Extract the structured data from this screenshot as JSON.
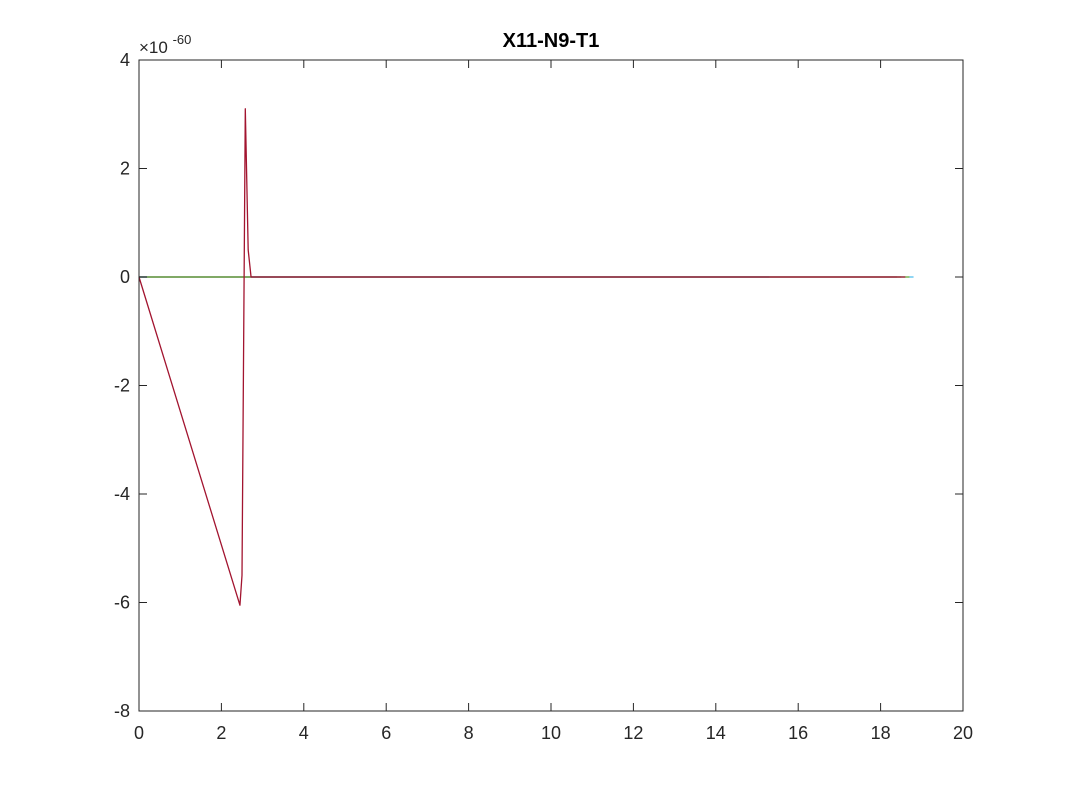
{
  "chart_data": {
    "type": "line",
    "title": "X11-N9-T1",
    "xlabel": "",
    "ylabel": "",
    "xlim": [
      0,
      20
    ],
    "ylim": [
      -8,
      4
    ],
    "y_scale_factor": {
      "base": "×10",
      "exponent": "-60"
    },
    "x_ticks": [
      0,
      2,
      4,
      6,
      8,
      10,
      12,
      14,
      16,
      18,
      20
    ],
    "y_ticks": [
      -8,
      -6,
      -4,
      -2,
      0,
      2,
      4
    ],
    "grid": false,
    "legend": "none",
    "series": [
      {
        "color": "#a2142f",
        "x": [
          0,
          2.45,
          2.5,
          2.58,
          2.65,
          2.72,
          18.6
        ],
        "y": [
          0,
          -6.05,
          -5.5,
          3.1,
          0.5,
          0,
          0
        ]
      },
      {
        "color": "#77ac30",
        "x": [
          0,
          18.7
        ],
        "y": [
          0,
          0
        ]
      },
      {
        "color": "#4dbeee",
        "x": [
          0,
          18.8
        ],
        "y": [
          0,
          0
        ]
      },
      {
        "color": "#0072bd",
        "x": [
          0,
          15.3
        ],
        "y": [
          0,
          0
        ]
      },
      {
        "color": "#d95319",
        "x": [
          0,
          18.5
        ],
        "y": [
          0,
          0
        ]
      },
      {
        "color": "#7e2f8e",
        "x": [
          0,
          18.4
        ],
        "y": [
          0,
          0
        ]
      }
    ]
  }
}
